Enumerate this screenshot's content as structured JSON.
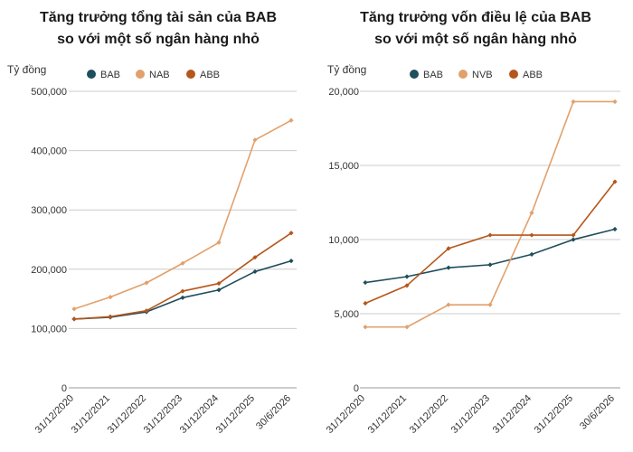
{
  "colors": {
    "BAB": "#1f4e5c",
    "NAB": "#e2a06b",
    "NVB": "#e2a06b",
    "ABB": "#b5561a",
    "grid": "#cccccc",
    "axis": "#999999"
  },
  "chart_data": [
    {
      "type": "line",
      "title": [
        "Tăng trưởng tổng tài sản của BAB",
        "so với một số ngân hàng nhỏ"
      ],
      "ylabel": "Tỷ đồng",
      "xlabel": "",
      "categories": [
        "31/12/2020",
        "31/12/2021",
        "31/12/2022",
        "31/12/2023",
        "31/12/2024",
        "31/12/2025",
        "30/6/2026"
      ],
      "ylim": [
        0,
        500000
      ],
      "yticks": [
        0,
        100000,
        200000,
        300000,
        400000,
        500000
      ],
      "ytick_labels": [
        "0",
        "100,000",
        "200,000",
        "300,000",
        "400,000",
        "500,000"
      ],
      "grid": true,
      "legend": "top",
      "series": [
        {
          "name": "BAB",
          "color_key": "BAB",
          "values": [
            116000,
            119000,
            128000,
            152000,
            165000,
            196000,
            214000
          ]
        },
        {
          "name": "NAB",
          "color_key": "NAB",
          "values": [
            133000,
            153000,
            177000,
            210000,
            245000,
            418000,
            451000
          ]
        },
        {
          "name": "ABB",
          "color_key": "ABB",
          "values": [
            116000,
            120000,
            130000,
            163000,
            176000,
            220000,
            261000
          ]
        }
      ]
    },
    {
      "type": "line",
      "title": [
        "Tăng trưởng vốn điều lệ của BAB",
        "so với một số ngân hàng nhỏ"
      ],
      "ylabel": "Tỷ đồng",
      "xlabel": "",
      "categories": [
        "31/12/2020",
        "31/12/2021",
        "31/12/2022",
        "31/12/2023",
        "31/12/2024",
        "31/12/2025",
        "30/6/2026"
      ],
      "ylim": [
        0,
        20000
      ],
      "yticks": [
        0,
        5000,
        10000,
        15000,
        20000
      ],
      "ytick_labels": [
        "0",
        "5,000",
        "10,000",
        "15,000",
        "20,000"
      ],
      "grid": true,
      "legend": "top",
      "series": [
        {
          "name": "BAB",
          "color_key": "BAB",
          "values": [
            7100,
            7500,
            8100,
            8300,
            9000,
            10000,
            10700
          ]
        },
        {
          "name": "NVB",
          "color_key": "NVB",
          "values": [
            4100,
            4100,
            5600,
            5600,
            11800,
            19300,
            19300
          ]
        },
        {
          "name": "ABB",
          "color_key": "ABB",
          "values": [
            5700,
            6900,
            9400,
            10300,
            10300,
            10300,
            13900
          ]
        }
      ]
    }
  ]
}
